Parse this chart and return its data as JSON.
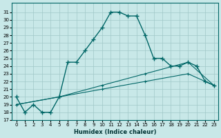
{
  "xlabel": "Humidex (Indice chaleur)",
  "bg_color": "#c8e8e8",
  "line_color": "#006666",
  "grid_color": "#a0c8c8",
  "xlim": [
    -0.5,
    23.5
  ],
  "ylim": [
    17,
    32
  ],
  "yticks": [
    17,
    18,
    19,
    20,
    21,
    22,
    23,
    24,
    25,
    26,
    27,
    28,
    29,
    30,
    31
  ],
  "xticks": [
    0,
    1,
    2,
    3,
    4,
    5,
    6,
    7,
    8,
    9,
    10,
    11,
    12,
    13,
    14,
    15,
    16,
    17,
    18,
    19,
    20,
    21,
    22,
    23
  ],
  "line1_x": [
    0,
    1,
    2,
    3,
    4,
    5,
    6,
    7,
    8,
    9,
    10,
    11,
    12,
    13,
    14,
    15,
    16,
    17,
    18,
    19,
    20,
    21,
    22,
    23
  ],
  "line1_y": [
    20,
    18,
    19,
    18,
    18,
    20,
    24.5,
    24.5,
    26,
    27.5,
    29,
    31,
    31,
    30.5,
    30.5,
    28,
    25,
    25,
    24,
    24,
    24.5,
    24,
    22,
    21.5
  ],
  "line2_x": [
    0,
    5,
    10,
    15,
    20,
    23
  ],
  "line2_y": [
    19.0,
    20.0,
    21.0,
    22.0,
    23.0,
    21.5
  ],
  "line3_x": [
    0,
    5,
    10,
    15,
    20,
    23
  ],
  "line3_y": [
    19.0,
    20.0,
    21.5,
    23.0,
    24.5,
    21.5
  ]
}
